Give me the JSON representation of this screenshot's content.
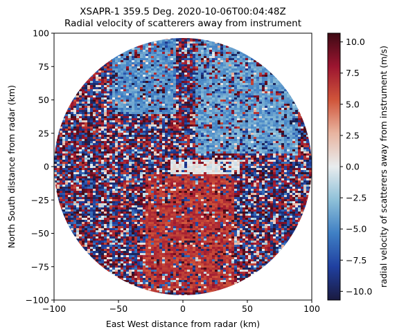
{
  "chart_data": {
    "type": "heatmap",
    "title": "XSAPR-1 359.5 Deg. 2020-10-06T00:04:48Z",
    "subtitle": "Radial velocity of scatterers away from instrument",
    "xlabel": "East West distance from radar (km)",
    "ylabel": "North South distance from radar (km)",
    "xlim": [
      -100,
      100
    ],
    "ylim": [
      -100,
      100
    ],
    "x_ticks": [
      "-100",
      "-50",
      "0",
      "50",
      "100"
    ],
    "y_ticks": [
      "100",
      "75",
      "50",
      "25",
      "0",
      "-25",
      "-50",
      "-75",
      "-100"
    ],
    "x_tick_values": [
      -100,
      -50,
      0,
      50,
      100
    ],
    "y_tick_values": [
      100,
      75,
      50,
      25,
      0,
      -25,
      -50,
      -75,
      -100
    ],
    "radar_range_km": 100,
    "grid": false,
    "colorbar": {
      "label": "radial velocity of scatterers away from instrument (m/s)",
      "range": [
        -10.7,
        10.7
      ],
      "tick_values": [
        10,
        7.5,
        5,
        2.5,
        0,
        -2.5,
        -5,
        -7.5,
        -10
      ],
      "tick_labels": [
        "10.0",
        "7.5",
        "5.0",
        "2.5",
        "0.0",
        "−2.5",
        "−5.0",
        "−7.5",
        "−10.0"
      ],
      "colormap": [
        "#1a1a40",
        "#2040a0",
        "#3f7fc4",
        "#8ec0d8",
        "#e8ecee",
        "#e8b4a0",
        "#d0553a",
        "#9c1530",
        "#3d0a14"
      ]
    },
    "features": [
      {
        "name": "blue north-west region",
        "x_range_km": [
          -55,
          -5
        ],
        "y_range_km": [
          40,
          95
        ],
        "velocity_ms": -4.5
      },
      {
        "name": "blue north-east region",
        "x_range_km": [
          10,
          90
        ],
        "y_range_km": [
          10,
          95
        ],
        "velocity_ms": -4.0
      },
      {
        "name": "light near-zero band",
        "x_range_km": [
          -10,
          45
        ],
        "y_range_km": [
          -5,
          5
        ],
        "velocity_ms": 0.0
      },
      {
        "name": "orange-red southern plume",
        "x_range_km": [
          -30,
          40
        ],
        "y_range_km": [
          -95,
          -5
        ],
        "velocity_ms": 6.5
      }
    ]
  }
}
